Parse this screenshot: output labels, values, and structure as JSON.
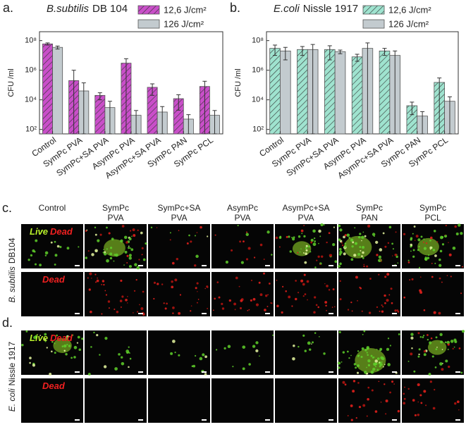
{
  "chart_data": [
    {
      "type": "bar",
      "panel": "a.",
      "title_parts": [
        "B.subtilis",
        "DB 104"
      ],
      "ylabel": "CFU /ml",
      "categories": [
        "Control",
        "SymPc PVA",
        "SymPc+SA PVA",
        "AsymPc PVA",
        "AsymPc+SA PVA",
        "SymPc PAN",
        "SymPc PCL"
      ],
      "series": [
        {
          "name": "12,6 J/cm²",
          "color": "#c94fc9",
          "hatch": true,
          "values": [
            60000000,
            200000,
            20000,
            3000000,
            70000,
            12000,
            80000
          ],
          "errors": [
            10000000,
            800000,
            10000,
            3000000,
            50000,
            10000,
            100000
          ]
        },
        {
          "name": "126 J/cm²",
          "color": "#c3cbcf",
          "hatch": false,
          "values": [
            35000000,
            40000,
            3000,
            900,
            1500,
            500,
            900
          ],
          "errors": [
            8000000,
            100000,
            5000,
            1000,
            2000,
            500,
            1000
          ]
        }
      ],
      "log_scale": true,
      "ylim": [
        50,
        400000000
      ],
      "yticks": [
        {
          "value": 100,
          "label": "10²"
        },
        {
          "value": 10000,
          "label": "10⁴"
        },
        {
          "value": 1000000,
          "label": "10⁶"
        },
        {
          "value": 100000000,
          "label": "10⁸"
        }
      ]
    },
    {
      "type": "bar",
      "panel": "b.",
      "title_parts": [
        "E.coli",
        "Nissle 1917"
      ],
      "ylabel": "CFU /ml",
      "categories": [
        "Control",
        "SymPc PVA",
        "SymPc+SA PVA",
        "AsymPc PVA",
        "AsymPc+SA PVA",
        "SymPc PAN",
        "SymPc PCL"
      ],
      "series": [
        {
          "name": "12,6 J/cm²",
          "color": "#9fe3cf",
          "hatch": true,
          "values": [
            30000000,
            25000000,
            25000000,
            8000000,
            20000000,
            4000,
            150000
          ],
          "errors": [
            20000000,
            15000000,
            20000000,
            4000000,
            10000000,
            3000,
            150000
          ]
        },
        {
          "name": "126 J/cm²",
          "color": "#c3cbcf",
          "hatch": false,
          "values": [
            20000000,
            25000000,
            18000000,
            30000000,
            10000000,
            800,
            8000
          ],
          "errors": [
            15000000,
            30000000,
            5000000,
            40000000,
            10000000,
            800,
            8000
          ]
        }
      ],
      "log_scale": true,
      "ylim": [
        50,
        400000000
      ],
      "yticks": [
        {
          "value": 100,
          "label": "10²"
        },
        {
          "value": 10000,
          "label": "10⁴"
        },
        {
          "value": 1000000,
          "label": "10⁶"
        },
        {
          "value": 100000000,
          "label": "10⁸"
        }
      ]
    }
  ],
  "microscopy": {
    "columns": [
      [
        "Control"
      ],
      [
        "SymPc",
        "PVA"
      ],
      [
        "SymPc+SA",
        "PVA"
      ],
      [
        "AsymPc",
        "PVA"
      ],
      [
        "AsymPc+SA",
        "PVA"
      ],
      [
        "SymPc",
        "PAN"
      ],
      [
        "SymPc",
        "PCL"
      ]
    ],
    "panels": [
      {
        "label": "c.",
        "row_label_parts": [
          "B. subtilis",
          "DB104"
        ],
        "rows": [
          {
            "live": "Live",
            "dead": "Dead"
          },
          {
            "dead": "Dead"
          }
        ]
      },
      {
        "label": "d.",
        "row_label_parts": [
          "E. coli",
          "Nissle 1917"
        ],
        "rows": [
          {
            "live": "Live",
            "dead": "Dead"
          },
          {
            "dead": "Dead"
          }
        ]
      }
    ]
  }
}
